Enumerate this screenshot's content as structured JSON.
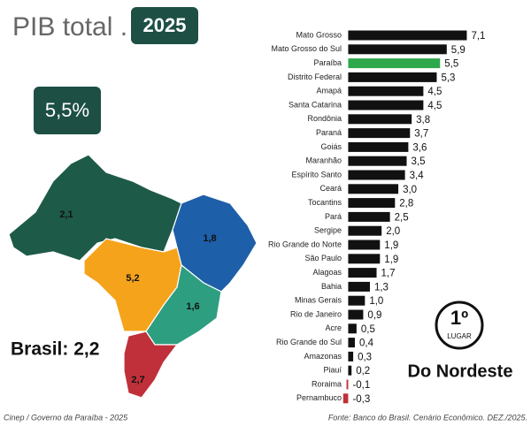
{
  "header": {
    "title": "PIB total .",
    "year": "2025"
  },
  "badge": "5,5%",
  "map": {
    "regions": [
      "2,1",
      "1,8",
      "5,2",
      "1,6",
      "2,7"
    ],
    "total": "Brasil: 2,2"
  },
  "rank": {
    "position": "1º",
    "caption": "LUGAR",
    "subtitle": "Do Nordeste"
  },
  "footer": {
    "credit": "Cinep / Governo da Paraíba - 2025",
    "source": "Fonte: Banco do Brasil. Cenário Econômico. DEZ./2025."
  },
  "chart_data": {
    "type": "hbar",
    "categories": [
      "Mato Grosso",
      "Mato Grosso do Sul",
      "Paraíba",
      "Distrito Federal",
      "Amapá",
      "Santa Catarina",
      "Rondônia",
      "Paraná",
      "Goiás",
      "Maranhão",
      "Espírito Santo",
      "Ceará",
      "Tocantins",
      "Pará",
      "Sergipe",
      "Rio Grande do Norte",
      "São Paulo",
      "Alagoas",
      "Bahia",
      "Minas Gerais",
      "Rio de Janeiro",
      "Acre",
      "Rio Grande do Sul",
      "Amazonas",
      "Piauí",
      "Roraima",
      "Pernambuco"
    ],
    "values": [
      7.1,
      5.9,
      5.5,
      5.3,
      4.5,
      4.5,
      3.8,
      3.7,
      3.6,
      3.5,
      3.4,
      3.0,
      2.8,
      2.5,
      2.0,
      1.9,
      1.9,
      1.7,
      1.3,
      1.0,
      0.9,
      0.5,
      0.4,
      0.3,
      0.2,
      -0.1,
      -0.3
    ],
    "value_labels": [
      "7,1",
      "5,9",
      "5,5",
      "5,3",
      "4,5",
      "4,5",
      "3,8",
      "3,7",
      "3,6",
      "3,5",
      "3,4",
      "3,0",
      "2,8",
      "2,5",
      "2,0",
      "1,9",
      "1,9",
      "1,7",
      "1,3",
      "1,0",
      "0,9",
      "0,5",
      "0,4",
      "0,3",
      "0,2",
      "-0,1",
      "-0,3"
    ],
    "colors": [
      "#111111",
      "#111111",
      "#2ea84a",
      "#111111",
      "#111111",
      "#111111",
      "#111111",
      "#111111",
      "#111111",
      "#111111",
      "#111111",
      "#111111",
      "#111111",
      "#111111",
      "#111111",
      "#111111",
      "#111111",
      "#111111",
      "#111111",
      "#111111",
      "#111111",
      "#111111",
      "#111111",
      "#111111",
      "#111111",
      "#c0303a",
      "#c0303a"
    ],
    "xlim": [
      -0.5,
      7.5
    ]
  }
}
